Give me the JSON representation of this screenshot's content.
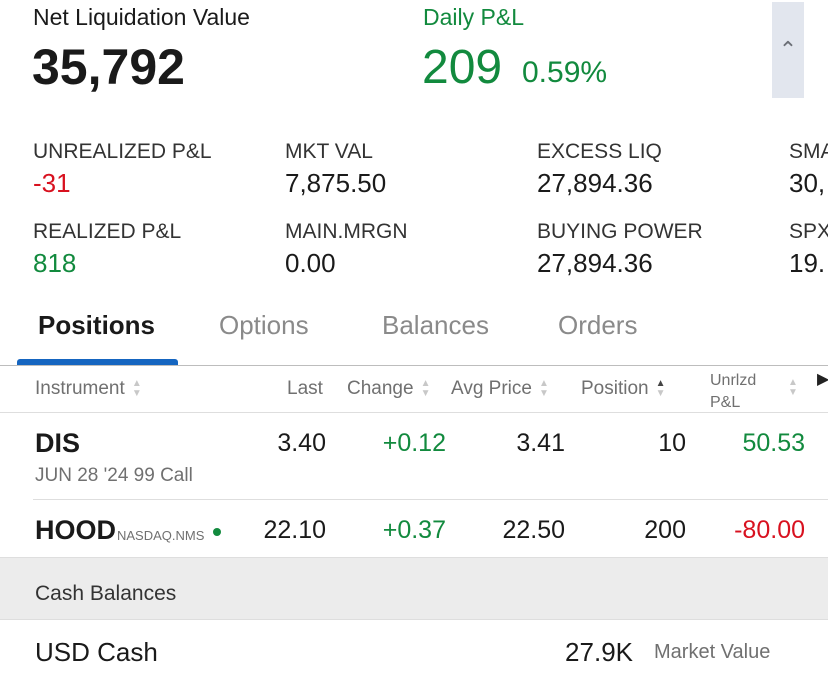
{
  "summary": {
    "net_liq_label": "Net Liquidation Value",
    "net_liq_value": "35,792",
    "daily_pnl_label": "Daily P&L",
    "daily_pnl_value": "209",
    "daily_pnl_pct": "0.59%"
  },
  "metrics": [
    {
      "label": "UNREALIZED P&L",
      "value": "-31"
    },
    {
      "label": "MKT VAL",
      "value": "7,875.50"
    },
    {
      "label": "EXCESS LIQ",
      "value": "27,894.36"
    },
    {
      "label": "SMA",
      "value": "30,"
    },
    {
      "label": "REALIZED P&L",
      "value": "818"
    },
    {
      "label": "MAIN.MRGN",
      "value": "0.00"
    },
    {
      "label": "BUYING POWER",
      "value": "27,894.36"
    },
    {
      "label": "SPX",
      "value": "19."
    }
  ],
  "tabs": [
    "Positions",
    "Options",
    "Balances",
    "Orders"
  ],
  "columns": {
    "instrument": "Instrument",
    "last": "Last",
    "change": "Change",
    "avg_price": "Avg Price",
    "position": "Position",
    "unrlzd_1": "Unrlzd",
    "unrlzd_2": "P&L"
  },
  "rows": [
    {
      "symbol": "DIS",
      "sub": "JUN 28 '24 99 Call",
      "last": "3.40",
      "change": "+0.12",
      "avg": "3.41",
      "position": "10",
      "pnl": "50.53"
    },
    {
      "symbol": "HOOD",
      "sub": "NASDAQ.NMS",
      "last": "22.10",
      "change": "+0.37",
      "avg": "22.50",
      "position": "200",
      "pnl": "-80.00"
    }
  ],
  "cash": {
    "section": "Cash Balances",
    "label": "USD Cash",
    "value": "27.9K",
    "value_label": "Market Value"
  }
}
